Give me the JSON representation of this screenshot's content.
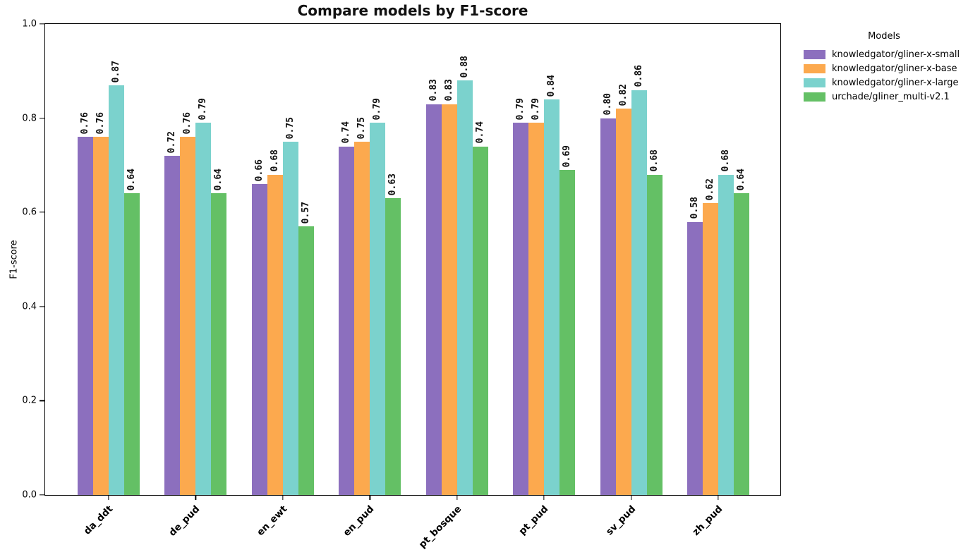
{
  "chart_data": {
    "type": "bar",
    "title": "Compare models by F1-score",
    "xlabel": "",
    "ylabel": "F1-score",
    "ylim": [
      0.0,
      1.0
    ],
    "yticks": [
      0.0,
      0.2,
      0.4,
      0.6,
      0.8,
      1.0
    ],
    "grid": false,
    "legend_title": "Models",
    "legend_position": "outside-right",
    "bar_label_rotation": 90,
    "xtick_rotation": 45,
    "categories": [
      "da_ddt",
      "de_pud",
      "en_ewt",
      "en_pud",
      "pt_bosque",
      "pt_pud",
      "sv_pud",
      "zh_pud"
    ],
    "series": [
      {
        "name": "knowledgator/gliner-x-small",
        "color": "#8c6fbe",
        "values": [
          0.76,
          0.72,
          0.66,
          0.74,
          0.83,
          0.79,
          0.8,
          0.58
        ]
      },
      {
        "name": "knowledgator/gliner-x-base",
        "color": "#fca94e",
        "values": [
          0.76,
          0.76,
          0.68,
          0.75,
          0.83,
          0.79,
          0.82,
          0.62
        ]
      },
      {
        "name": "knowledgator/gliner-x-large",
        "color": "#7bd2cd",
        "values": [
          0.87,
          0.79,
          0.75,
          0.79,
          0.88,
          0.84,
          0.86,
          0.68
        ]
      },
      {
        "name": "urchade/gliner_multi-v2.1",
        "color": "#64c065",
        "values": [
          0.64,
          0.64,
          0.57,
          0.63,
          0.74,
          0.69,
          0.68,
          0.64
        ]
      }
    ]
  }
}
